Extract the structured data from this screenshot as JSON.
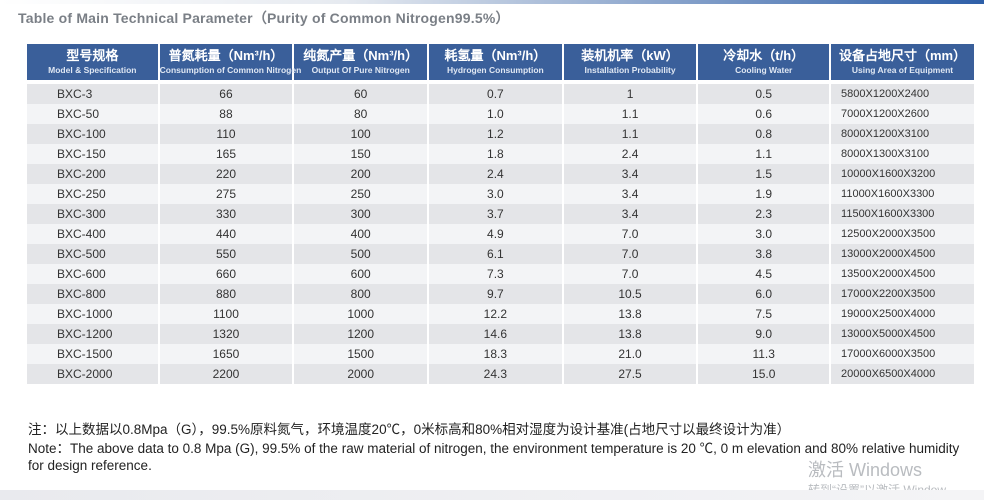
{
  "title": "Table of Main Technical Parameter（Purity of Common Nitrogen99.5%）",
  "headers": [
    {
      "zh": "型号规格",
      "en": "Model & Specification"
    },
    {
      "zh": "普氮耗量（Nm³/h）",
      "en": "Consumption of Common Nitrogen"
    },
    {
      "zh": "纯氮产量（Nm³/h）",
      "en": "Output Of Pure Nitrogen"
    },
    {
      "zh": "耗氢量（Nm³/h）",
      "en": "Hydrogen Consumption"
    },
    {
      "zh": "装机机率（kW）",
      "en": "Installation Probability"
    },
    {
      "zh": "冷却水（t/h）",
      "en": "Cooling Water"
    },
    {
      "zh": "设备占地尺寸（mm）",
      "en": "Using Area of Equipment"
    }
  ],
  "rows": [
    [
      "BXC-3",
      "66",
      "60",
      "0.7",
      "1",
      "0.5",
      "5800X1200X2400"
    ],
    [
      "BXC-50",
      "88",
      "80",
      "1.0",
      "1.1",
      "0.6",
      "7000X1200X2600"
    ],
    [
      "BXC-100",
      "110",
      "100",
      "1.2",
      "1.1",
      "0.8",
      "8000X1200X3100"
    ],
    [
      "BXC-150",
      "165",
      "150",
      "1.8",
      "2.4",
      "1.1",
      "8000X1300X3100"
    ],
    [
      "BXC-200",
      "220",
      "200",
      "2.4",
      "3.4",
      "1.5",
      "10000X1600X3200"
    ],
    [
      "BXC-250",
      "275",
      "250",
      "3.0",
      "3.4",
      "1.9",
      "11000X1600X3300"
    ],
    [
      "BXC-300",
      "330",
      "300",
      "3.7",
      "3.4",
      "2.3",
      "11500X1600X3300"
    ],
    [
      "BXC-400",
      "440",
      "400",
      "4.9",
      "7.0",
      "3.0",
      "12500X2000X3500"
    ],
    [
      "BXC-500",
      "550",
      "500",
      "6.1",
      "7.0",
      "3.8",
      "13000X2000X4500"
    ],
    [
      "BXC-600",
      "660",
      "600",
      "7.3",
      "7.0",
      "4.5",
      "13500X2000X4500"
    ],
    [
      "BXC-800",
      "880",
      "800",
      "9.7",
      "10.5",
      "6.0",
      "17000X2200X3500"
    ],
    [
      "BXC-1000",
      "1100",
      "1000",
      "12.2",
      "13.8",
      "7.5",
      "19000X2500X4000"
    ],
    [
      "BXC-1200",
      "1320",
      "1200",
      "14.6",
      "13.8",
      "9.0",
      "13000X5000X4500"
    ],
    [
      "BXC-1500",
      "1650",
      "1500",
      "18.3",
      "21.0",
      "11.3",
      "17000X6000X3500"
    ],
    [
      "BXC-2000",
      "2200",
      "2000",
      "24.3",
      "27.5",
      "15.0",
      "20000X6500X4000"
    ]
  ],
  "note_zh": "注：以上数据以0.8Mpa（G），99.5%原料氮气，环境温度20℃，0米标高和80%相对湿度为设计基准(占地尺寸以最终设计为准）",
  "note_en_label": "Note：",
  "note_en": "The above data to 0.8 Mpa (G), 99.5% of the raw material of nitrogen, the environment temperature is 20 ℃, 0 m elevation and 80% relative humidity for design reference.",
  "watermark_line1": "激活 Windows",
  "watermark_line2": "转到“设置”以激活 Window"
}
